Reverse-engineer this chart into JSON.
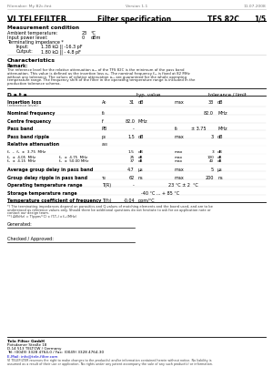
{
  "header_left": "Filemaker: My B2c.fmt",
  "header_center": "Version 1.1",
  "header_right": "11.07.2008",
  "title_left": "VI TELEFILTER",
  "title_center": "Filter specification",
  "title_right1": "TFS 82C",
  "title_right2": "1/5",
  "bg_color": "#ffffff"
}
